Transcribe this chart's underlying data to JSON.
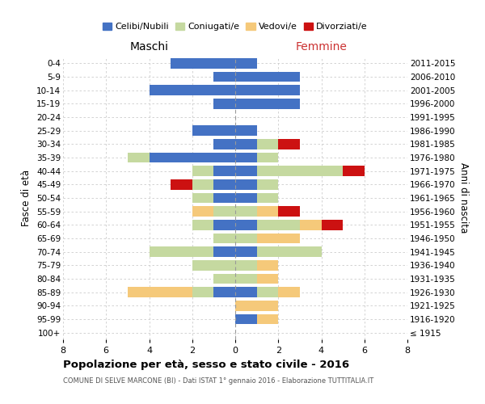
{
  "age_groups": [
    "100+",
    "95-99",
    "90-94",
    "85-89",
    "80-84",
    "75-79",
    "70-74",
    "65-69",
    "60-64",
    "55-59",
    "50-54",
    "45-49",
    "40-44",
    "35-39",
    "30-34",
    "25-29",
    "20-24",
    "15-19",
    "10-14",
    "5-9",
    "0-4"
  ],
  "birth_years": [
    "≤ 1915",
    "1916-1920",
    "1921-1925",
    "1926-1930",
    "1931-1935",
    "1936-1940",
    "1941-1945",
    "1946-1950",
    "1951-1955",
    "1956-1960",
    "1961-1965",
    "1966-1970",
    "1971-1975",
    "1976-1980",
    "1981-1985",
    "1986-1990",
    "1991-1995",
    "1996-2000",
    "2001-2005",
    "2006-2010",
    "2011-2015"
  ],
  "male_celibi": [
    0,
    0,
    0,
    1,
    0,
    0,
    1,
    0,
    1,
    0,
    1,
    1,
    1,
    4,
    1,
    2,
    0,
    1,
    4,
    1,
    3
  ],
  "male_coniugati": [
    0,
    0,
    0,
    1,
    1,
    2,
    3,
    1,
    1,
    1,
    1,
    1,
    1,
    1,
    0,
    0,
    0,
    0,
    0,
    0,
    0
  ],
  "male_vedovi": [
    0,
    0,
    0,
    3,
    0,
    0,
    0,
    0,
    0,
    1,
    0,
    0,
    0,
    0,
    0,
    0,
    0,
    0,
    0,
    0,
    0
  ],
  "male_divorziati": [
    0,
    0,
    0,
    0,
    0,
    0,
    0,
    0,
    0,
    0,
    0,
    1,
    0,
    0,
    0,
    0,
    0,
    0,
    0,
    0,
    0
  ],
  "female_nubili": [
    0,
    1,
    0,
    1,
    0,
    0,
    1,
    0,
    1,
    0,
    1,
    1,
    1,
    1,
    1,
    1,
    0,
    3,
    3,
    3,
    1
  ],
  "female_coniugate": [
    0,
    0,
    0,
    1,
    1,
    1,
    3,
    1,
    2,
    1,
    1,
    1,
    4,
    1,
    1,
    0,
    0,
    0,
    0,
    0,
    0
  ],
  "female_vedove": [
    0,
    1,
    2,
    1,
    1,
    1,
    0,
    2,
    1,
    1,
    0,
    0,
    0,
    0,
    0,
    0,
    0,
    0,
    0,
    0,
    0
  ],
  "female_divorziate": [
    0,
    0,
    0,
    0,
    0,
    0,
    0,
    0,
    1,
    1,
    0,
    0,
    1,
    0,
    1,
    0,
    0,
    0,
    0,
    0,
    0
  ],
  "color_cel": "#4472c4",
  "color_con": "#c5d9a0",
  "color_ved": "#f5c97a",
  "color_div": "#cc1111",
  "title": "Popolazione per età, sesso e stato civile - 2016",
  "subtitle": "COMUNE DI SELVE MARCONE (BI) - Dati ISTAT 1° gennaio 2016 - Elaborazione TUTTITALIA.IT",
  "label_maschi": "Maschi",
  "label_femmine": "Femmine",
  "label_fasce": "Fasce di età",
  "label_anni": "Anni di nascita",
  "legend_labels": [
    "Celibi/Nubili",
    "Coniugati/e",
    "Vedovi/e",
    "Divorziati/e"
  ],
  "xlim": 8,
  "bg_color": "#ffffff",
  "grid_color": "#cccccc"
}
